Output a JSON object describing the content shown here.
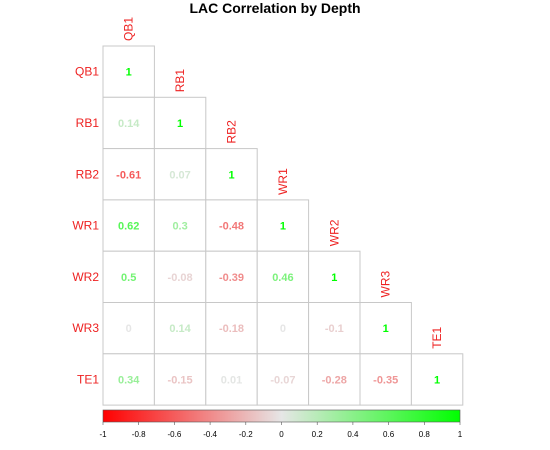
{
  "chart_data": {
    "type": "heatmap",
    "title": "LAC Correlation by Depth",
    "variables": [
      "QB1",
      "RB1",
      "RB2",
      "WR1",
      "WR2",
      "WR3",
      "TE1"
    ],
    "lower_triangle": [
      [
        1
      ],
      [
        0.14,
        1
      ],
      [
        -0.61,
        0.07,
        1
      ],
      [
        0.62,
        0.3,
        -0.48,
        1
      ],
      [
        0.5,
        -0.08,
        -0.39,
        0.46,
        1
      ],
      [
        0,
        0.14,
        -0.18,
        0,
        -0.1,
        1
      ],
      [
        0.34,
        -0.15,
        0.01,
        -0.07,
        -0.28,
        -0.35,
        1
      ]
    ],
    "colorbar": {
      "range": [
        -1,
        1
      ],
      "ticks": [
        "-1",
        "-0.8",
        "-0.6",
        "-0.4",
        "-0.2",
        "0",
        "0.2",
        "0.4",
        "0.6",
        "0.8",
        "1"
      ],
      "low_color": "#ff0000",
      "mid_color": "#e6e6e6",
      "high_color": "#00ff00",
      "label_color": "#ee2222"
    }
  }
}
